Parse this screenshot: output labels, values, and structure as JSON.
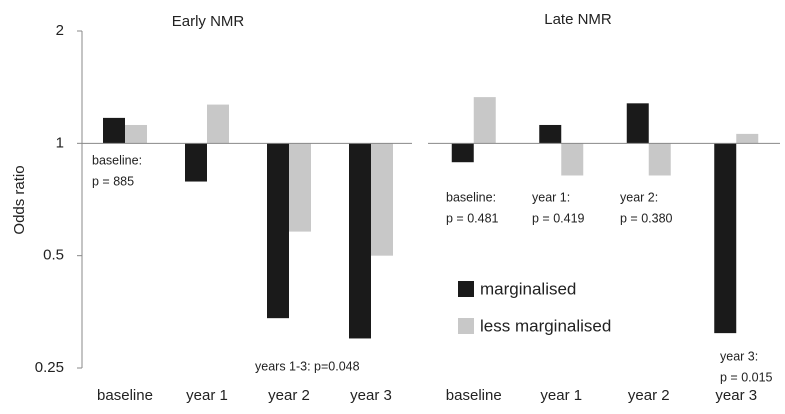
{
  "chart_data": [
    {
      "type": "bar",
      "title": "Early NMR",
      "y_label": "Odds ratio",
      "log_scale": true,
      "bar_base": 1,
      "categories": [
        "baseline",
        "year 1",
        "year 2",
        "year 3"
      ],
      "series": [
        {
          "color": "#1a1a1a",
          "values": [
            1.17,
            0.79,
            0.34,
            0.3
          ]
        },
        {
          "color": "#c8c8c8",
          "values": [
            1.12,
            1.27,
            0.58,
            0.5
          ]
        }
      ],
      "ylim": [
        0.25,
        2
      ],
      "yticks": [
        2,
        1,
        0.5,
        0.25
      ],
      "annotations": [
        [
          "baseline:",
          "p = 885"
        ],
        [
          "years 1-3: p=0.048"
        ]
      ]
    },
    {
      "type": "bar",
      "title": "Late NMR",
      "log_scale": true,
      "bar_base": 1,
      "categories": [
        "baseline",
        "year 1",
        "year 2",
        "year 3"
      ],
      "series": [
        {
          "name": "marginalised",
          "color": "#1a1a1a",
          "values": [
            0.89,
            1.12,
            1.28,
            0.31
          ]
        },
        {
          "name": "less marginalised",
          "color": "#c8c8c8",
          "values": [
            1.33,
            0.82,
            0.82,
            1.06
          ]
        }
      ],
      "ylim": [
        0.25,
        2
      ],
      "legend": "center",
      "annotations": [
        [
          "baseline:",
          "p = 0.481"
        ],
        [
          "year 1:",
          "p = 0.419"
        ],
        [
          "year 2:",
          "p = 0.380"
        ],
        [
          "year 3:",
          "p = 0.015"
        ]
      ]
    }
  ]
}
